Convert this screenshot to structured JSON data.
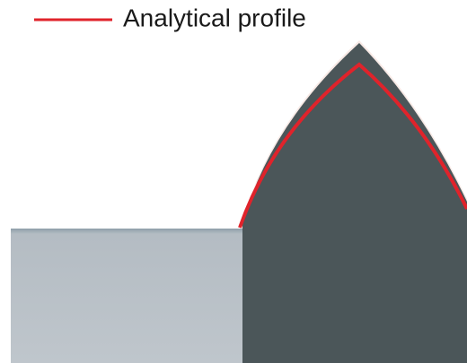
{
  "legend": {
    "label": "Analytical profile",
    "color": "#e0232b"
  }
}
